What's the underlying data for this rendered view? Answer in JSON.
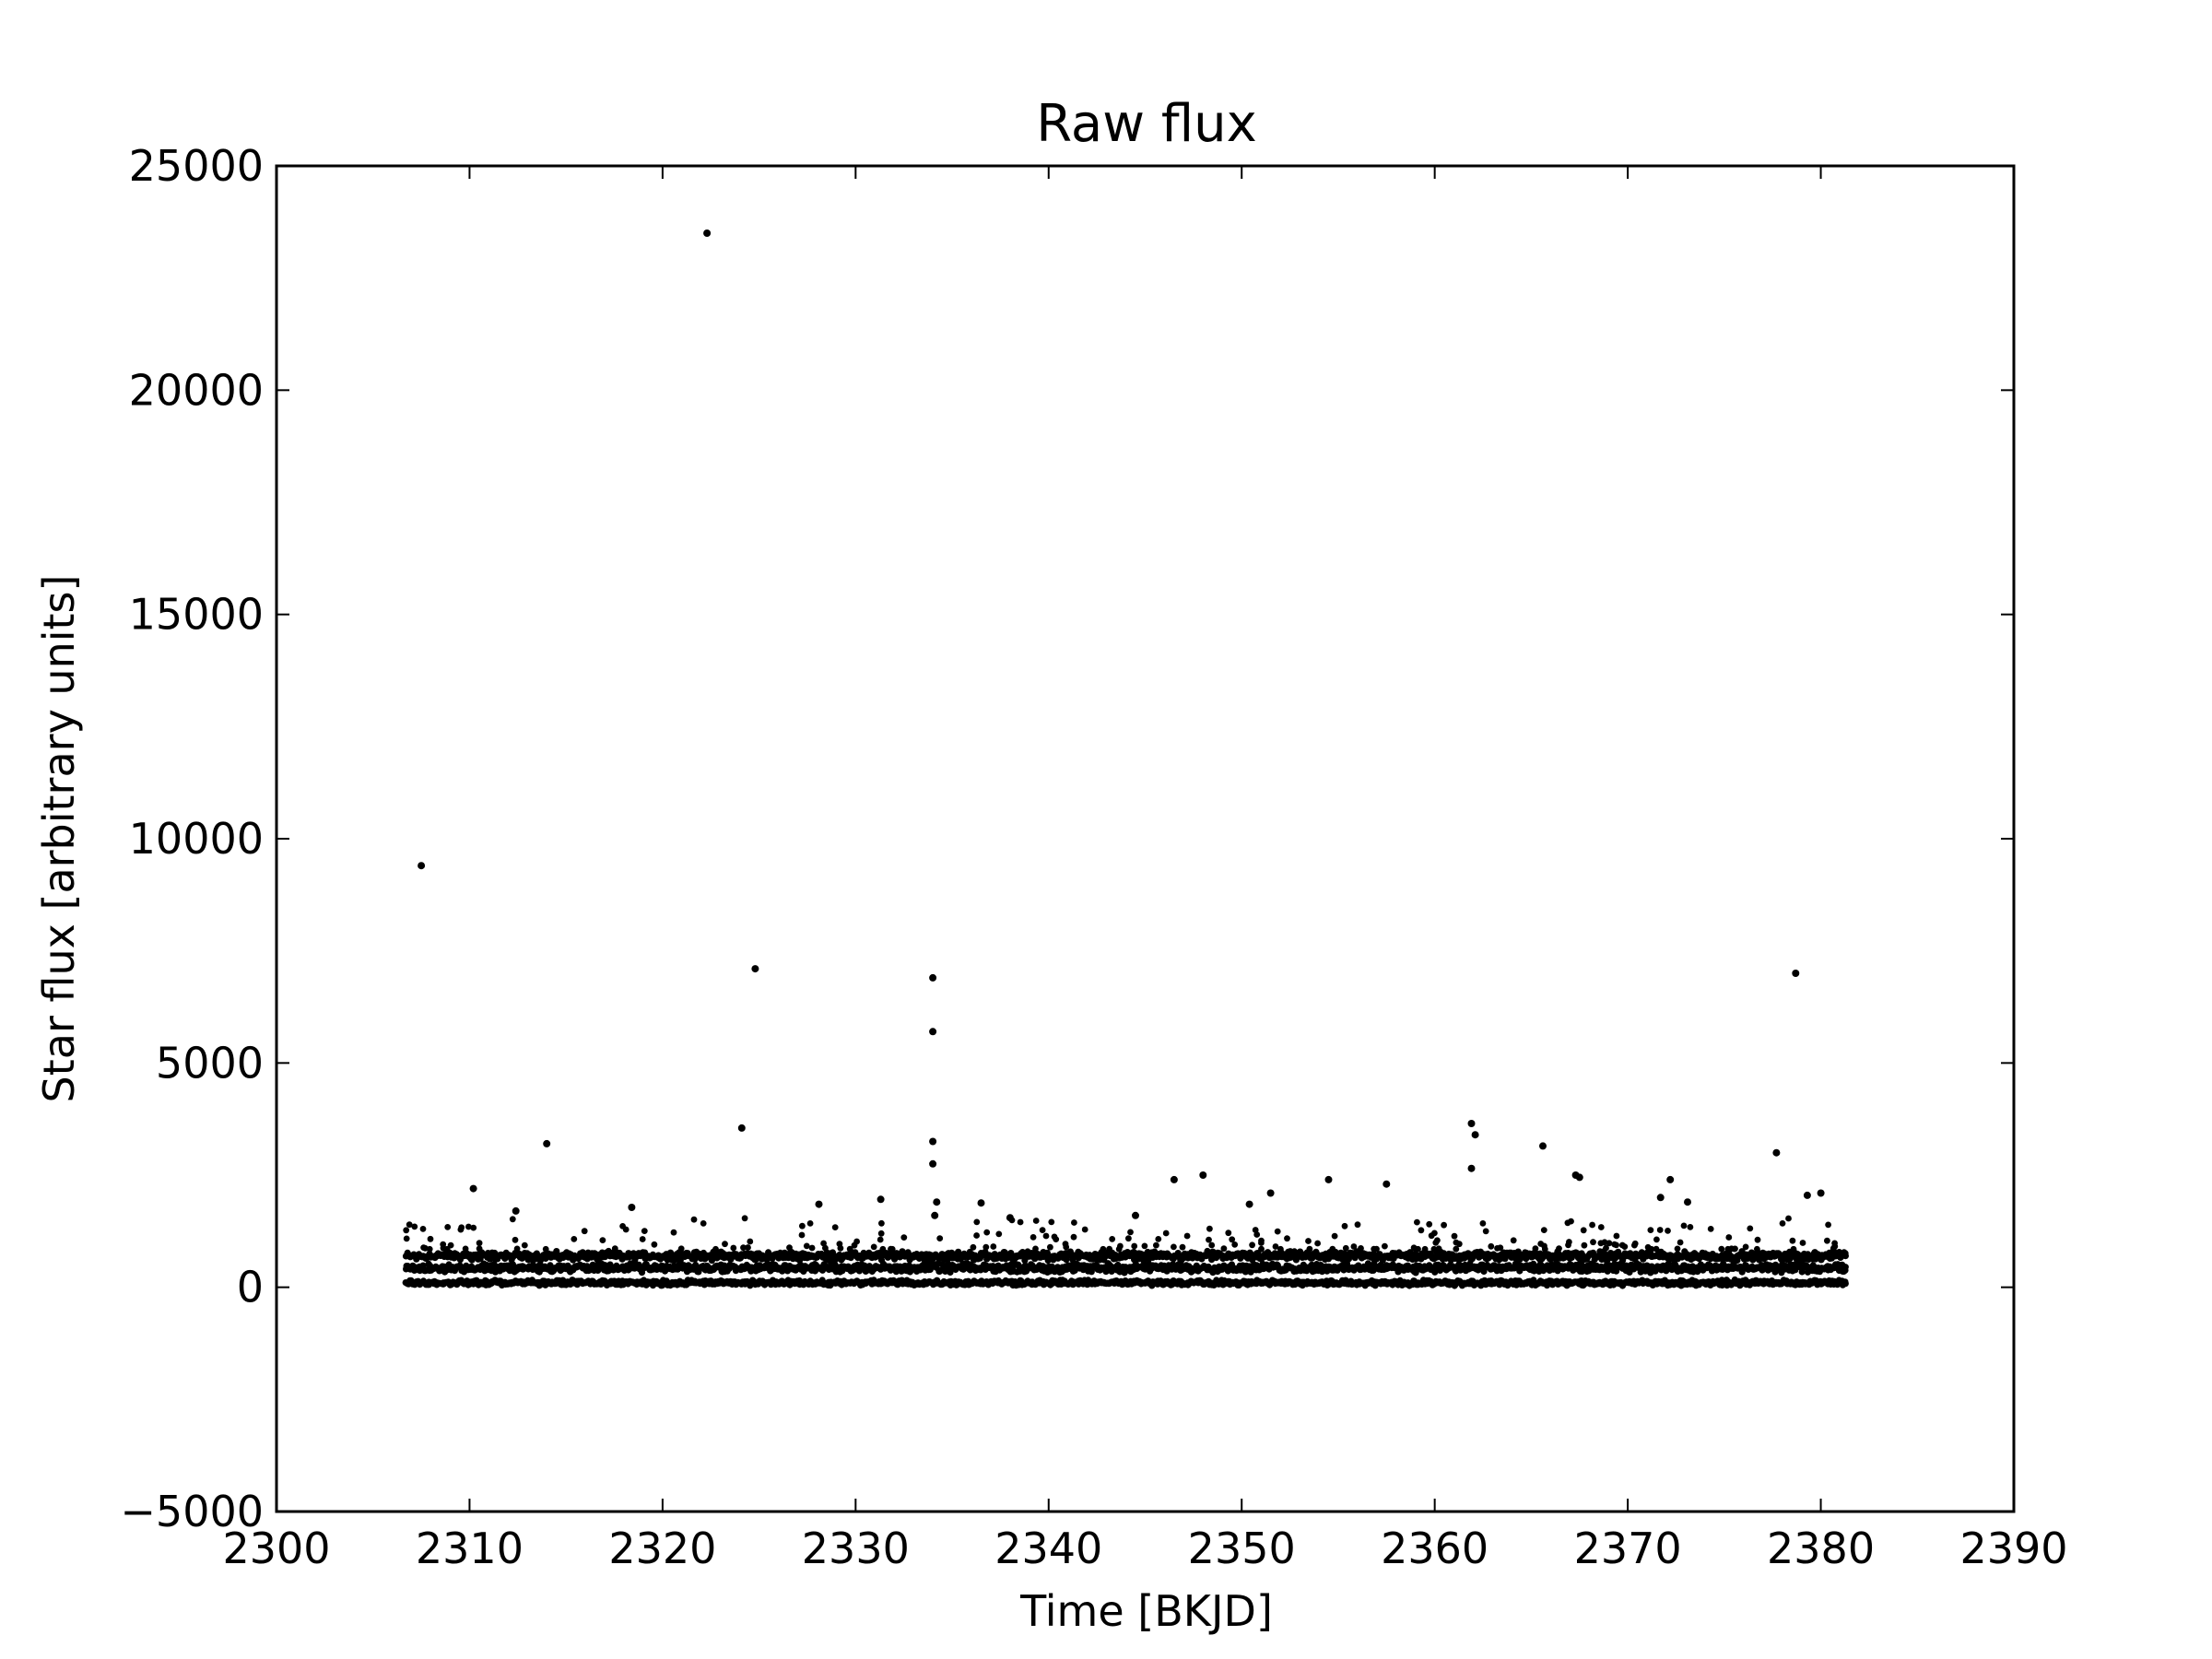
{
  "chart_data": {
    "type": "scatter",
    "title": "Raw flux",
    "xlabel": "Time [BKJD]",
    "ylabel": "Star flux [arbitrary units]",
    "xlim": [
      2300,
      2390
    ],
    "ylim": [
      -5000,
      25000
    ],
    "xticks": [
      2300,
      2310,
      2320,
      2330,
      2340,
      2350,
      2360,
      2370,
      2380,
      2390
    ],
    "yticks": [
      -5000,
      0,
      5000,
      10000,
      15000,
      20000,
      25000
    ],
    "xtick_labels": [
      "2300",
      "2310",
      "2320",
      "2330",
      "2340",
      "2350",
      "2360",
      "2370",
      "2380",
      "2390"
    ],
    "ytick_labels": [
      "−5000",
      "0",
      "5000",
      "10000",
      "15000",
      "20000",
      "25000"
    ],
    "grid": false,
    "marker_color": "#000000",
    "time_range": [
      2306.7,
      2381.3
    ],
    "bands": [
      {
        "name": "upper",
        "flux": 700,
        "spread": 110
      },
      {
        "name": "middle",
        "flux": 430,
        "spread": 110
      },
      {
        "name": "lower",
        "flux": 100,
        "spread": 70
      }
    ],
    "outliers": [
      {
        "x": 2307.5,
        "y": 9400
      },
      {
        "x": 2322.3,
        "y": 23500
      },
      {
        "x": 2324.8,
        "y": 7100
      },
      {
        "x": 2324.1,
        "y": 3550
      },
      {
        "x": 2334.0,
        "y": 6900
      },
      {
        "x": 2334.0,
        "y": 5700
      },
      {
        "x": 2334.0,
        "y": 3250
      },
      {
        "x": 2334.0,
        "y": 2750
      },
      {
        "x": 2334.2,
        "y": 1900
      },
      {
        "x": 2334.1,
        "y": 1600
      },
      {
        "x": 2314.0,
        "y": 3200
      },
      {
        "x": 2310.2,
        "y": 2200
      },
      {
        "x": 2312.4,
        "y": 1700
      },
      {
        "x": 2318.4,
        "y": 1780
      },
      {
        "x": 2328.1,
        "y": 1850
      },
      {
        "x": 2331.3,
        "y": 1960
      },
      {
        "x": 2336.5,
        "y": 1880
      },
      {
        "x": 2338.0,
        "y": 1550
      },
      {
        "x": 2344.5,
        "y": 1600
      },
      {
        "x": 2346.5,
        "y": 2400
      },
      {
        "x": 2348.0,
        "y": 2500
      },
      {
        "x": 2350.4,
        "y": 1850
      },
      {
        "x": 2351.5,
        "y": 2100
      },
      {
        "x": 2354.5,
        "y": 2400
      },
      {
        "x": 2357.5,
        "y": 2300
      },
      {
        "x": 2361.9,
        "y": 3650
      },
      {
        "x": 2362.1,
        "y": 3400
      },
      {
        "x": 2361.9,
        "y": 2650
      },
      {
        "x": 2365.6,
        "y": 3150
      },
      {
        "x": 2367.3,
        "y": 2500
      },
      {
        "x": 2367.5,
        "y": 2450
      },
      {
        "x": 2371.7,
        "y": 2000
      },
      {
        "x": 2372.2,
        "y": 2400
      },
      {
        "x": 2373.1,
        "y": 1900
      },
      {
        "x": 2377.7,
        "y": 3000
      },
      {
        "x": 2378.7,
        "y": 7000
      },
      {
        "x": 2379.3,
        "y": 2050
      },
      {
        "x": 2380.0,
        "y": 2100
      }
    ]
  }
}
